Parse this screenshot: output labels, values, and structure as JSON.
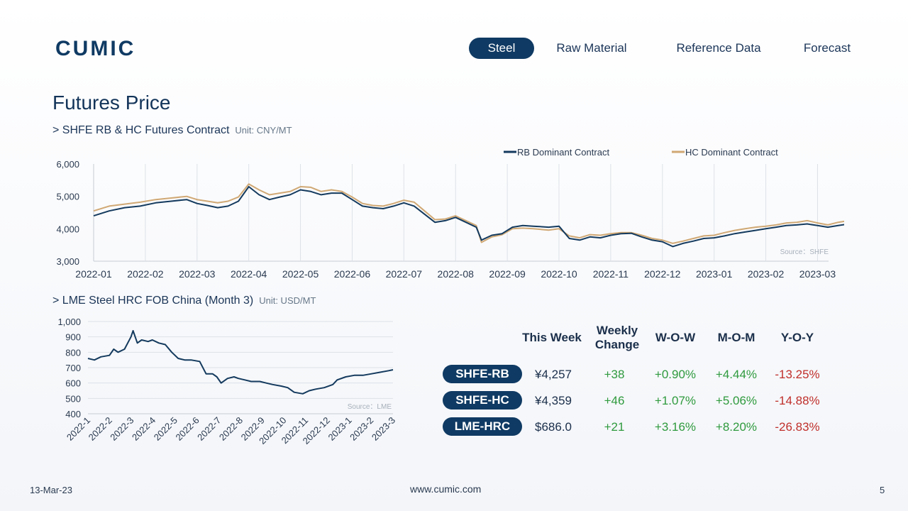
{
  "brand": {
    "logo_text": "CUMIC"
  },
  "nav": {
    "items": [
      "Steel",
      "Raw Material",
      "Reference Data",
      "Forecast"
    ],
    "active": 0
  },
  "page_title": "Futures Price",
  "section1": {
    "title": "> SHFE RB & HC Futures Contract",
    "unit": "Unit: CNY/MT"
  },
  "section2": {
    "title": "> LME Steel HRC FOB China (Month 3)",
    "unit": "Unit: USD/MT"
  },
  "colors": {
    "rb": "#143a5e",
    "hc": "#d0a874",
    "lme": "#143a5e",
    "positive": "#2f9a3e",
    "negative": "#c0302c",
    "pill": "#0f3a63"
  },
  "chart_data": [
    {
      "type": "line",
      "ylim": [
        3000,
        6000
      ],
      "yticks": [
        "3,000",
        "4,000",
        "5,000",
        "6,000"
      ],
      "categories": [
        "2022-01",
        "2022-02",
        "2022-03",
        "2022-04",
        "2022-05",
        "2022-06",
        "2022-07",
        "2022-08",
        "2022-09",
        "2022-10",
        "2022-11",
        "2022-12",
        "2023-01",
        "2023-02",
        "2023-03"
      ],
      "grid": "vertical",
      "legend_position": "top-right",
      "source": "Source：SHFE",
      "series": [
        {
          "name": "RB Dominant Contract",
          "color": "#143a5e",
          "values": [
            [
              0,
              4400
            ],
            [
              0.3,
              4550
            ],
            [
              0.6,
              4650
            ],
            [
              0.9,
              4700
            ],
            [
              1.2,
              4800
            ],
            [
              1.5,
              4850
            ],
            [
              1.8,
              4900
            ],
            [
              2.0,
              4780
            ],
            [
              2.2,
              4720
            ],
            [
              2.4,
              4650
            ],
            [
              2.6,
              4700
            ],
            [
              2.8,
              4850
            ],
            [
              3.0,
              5300
            ],
            [
              3.2,
              5050
            ],
            [
              3.4,
              4900
            ],
            [
              3.6,
              4980
            ],
            [
              3.8,
              5050
            ],
            [
              4.0,
              5200
            ],
            [
              4.2,
              5150
            ],
            [
              4.4,
              5050
            ],
            [
              4.6,
              5100
            ],
            [
              4.8,
              5100
            ],
            [
              5.0,
              4900
            ],
            [
              5.2,
              4700
            ],
            [
              5.4,
              4650
            ],
            [
              5.6,
              4620
            ],
            [
              5.8,
              4700
            ],
            [
              6.0,
              4800
            ],
            [
              6.2,
              4700
            ],
            [
              6.4,
              4450
            ],
            [
              6.6,
              4200
            ],
            [
              6.8,
              4250
            ],
            [
              7.0,
              4350
            ],
            [
              7.2,
              4200
            ],
            [
              7.4,
              4050
            ],
            [
              7.5,
              3650
            ],
            [
              7.7,
              3800
            ],
            [
              7.9,
              3850
            ],
            [
              8.1,
              4050
            ],
            [
              8.3,
              4100
            ],
            [
              8.5,
              4080
            ],
            [
              8.8,
              4050
            ],
            [
              9.0,
              4080
            ],
            [
              9.2,
              3700
            ],
            [
              9.4,
              3650
            ],
            [
              9.6,
              3750
            ],
            [
              9.8,
              3720
            ],
            [
              10.0,
              3800
            ],
            [
              10.2,
              3850
            ],
            [
              10.4,
              3860
            ],
            [
              10.6,
              3750
            ],
            [
              10.8,
              3650
            ],
            [
              11.0,
              3600
            ],
            [
              11.2,
              3450
            ],
            [
              11.4,
              3550
            ],
            [
              11.6,
              3620
            ],
            [
              11.8,
              3700
            ],
            [
              12.0,
              3720
            ],
            [
              12.2,
              3780
            ],
            [
              12.4,
              3850
            ],
            [
              12.6,
              3900
            ],
            [
              12.8,
              3950
            ],
            [
              13.0,
              4000
            ],
            [
              13.2,
              4050
            ],
            [
              13.4,
              4100
            ],
            [
              13.6,
              4120
            ],
            [
              13.8,
              4150
            ],
            [
              14.0,
              4100
            ],
            [
              14.2,
              4050
            ],
            [
              14.4,
              4100
            ],
            [
              14.6,
              4150
            ],
            [
              14.8,
              4200
            ],
            [
              15.0,
              4250
            ],
            [
              15.2,
              4200
            ],
            [
              15.4,
              4257
            ]
          ]
        },
        {
          "name": "HC Dominant Contract",
          "color": "#d0a874",
          "values": [
            [
              0,
              4550
            ],
            [
              0.3,
              4700
            ],
            [
              0.6,
              4760
            ],
            [
              0.9,
              4820
            ],
            [
              1.2,
              4900
            ],
            [
              1.5,
              4950
            ],
            [
              1.8,
              5000
            ],
            [
              2.0,
              4900
            ],
            [
              2.2,
              4850
            ],
            [
              2.4,
              4800
            ],
            [
              2.6,
              4850
            ],
            [
              2.8,
              4980
            ],
            [
              3.0,
              5380
            ],
            [
              3.2,
              5200
            ],
            [
              3.4,
              5050
            ],
            [
              3.6,
              5100
            ],
            [
              3.8,
              5150
            ],
            [
              4.0,
              5300
            ],
            [
              4.2,
              5280
            ],
            [
              4.4,
              5150
            ],
            [
              4.6,
              5200
            ],
            [
              4.8,
              5150
            ],
            [
              5.0,
              4980
            ],
            [
              5.2,
              4780
            ],
            [
              5.4,
              4720
            ],
            [
              5.6,
              4700
            ],
            [
              5.8,
              4780
            ],
            [
              6.0,
              4880
            ],
            [
              6.2,
              4820
            ],
            [
              6.4,
              4550
            ],
            [
              6.6,
              4280
            ],
            [
              6.8,
              4300
            ],
            [
              7.0,
              4400
            ],
            [
              7.2,
              4250
            ],
            [
              7.4,
              4100
            ],
            [
              7.5,
              3580
            ],
            [
              7.7,
              3750
            ],
            [
              7.9,
              3820
            ],
            [
              8.1,
              4000
            ],
            [
              8.3,
              4020
            ],
            [
              8.5,
              4000
            ],
            [
              8.8,
              3960
            ],
            [
              9.0,
              4000
            ],
            [
              9.2,
              3780
            ],
            [
              9.4,
              3720
            ],
            [
              9.6,
              3820
            ],
            [
              9.8,
              3800
            ],
            [
              10.0,
              3850
            ],
            [
              10.2,
              3880
            ],
            [
              10.4,
              3880
            ],
            [
              10.6,
              3800
            ],
            [
              10.8,
              3700
            ],
            [
              11.0,
              3650
            ],
            [
              11.2,
              3550
            ],
            [
              11.4,
              3620
            ],
            [
              11.6,
              3700
            ],
            [
              11.8,
              3780
            ],
            [
              12.0,
              3800
            ],
            [
              12.2,
              3880
            ],
            [
              12.4,
              3950
            ],
            [
              12.6,
              4000
            ],
            [
              12.8,
              4050
            ],
            [
              13.0,
              4080
            ],
            [
              13.2,
              4120
            ],
            [
              13.4,
              4180
            ],
            [
              13.6,
              4200
            ],
            [
              13.8,
              4250
            ],
            [
              14.0,
              4180
            ],
            [
              14.2,
              4120
            ],
            [
              14.4,
              4200
            ],
            [
              14.6,
              4250
            ],
            [
              14.8,
              4300
            ],
            [
              15.0,
              4300
            ],
            [
              15.2,
              4330
            ],
            [
              15.4,
              4359
            ]
          ]
        }
      ]
    },
    {
      "type": "line",
      "ylim": [
        400,
        1000
      ],
      "yticks": [
        "400",
        "500",
        "600",
        "700",
        "800",
        "900",
        "1,000"
      ],
      "categories": [
        "2022-1",
        "2022-2",
        "2022-3",
        "2022-4",
        "2022-5",
        "2022-6",
        "2022-7",
        "2022-8",
        "2022-9",
        "2022-10",
        "2022-11",
        "2022-12",
        "2023-1",
        "2023-2",
        "2023-3"
      ],
      "grid": "horizontal",
      "source": "Source：LME",
      "series": [
        {
          "name": "",
          "color": "#143a5e",
          "values": [
            [
              0,
              760
            ],
            [
              0.3,
              750
            ],
            [
              0.6,
              770
            ],
            [
              1.0,
              780
            ],
            [
              1.2,
              820
            ],
            [
              1.4,
              800
            ],
            [
              1.7,
              820
            ],
            [
              2.0,
              900
            ],
            [
              2.1,
              940
            ],
            [
              2.3,
              860
            ],
            [
              2.5,
              880
            ],
            [
              2.8,
              870
            ],
            [
              3.0,
              880
            ],
            [
              3.3,
              860
            ],
            [
              3.6,
              850
            ],
            [
              3.9,
              800
            ],
            [
              4.2,
              760
            ],
            [
              4.5,
              750
            ],
            [
              4.8,
              750
            ],
            [
              5.2,
              740
            ],
            [
              5.5,
              660
            ],
            [
              5.8,
              660
            ],
            [
              6.0,
              640
            ],
            [
              6.2,
              600
            ],
            [
              6.5,
              630
            ],
            [
              6.8,
              640
            ],
            [
              7.0,
              630
            ],
            [
              7.3,
              620
            ],
            [
              7.6,
              610
            ],
            [
              8.0,
              610
            ],
            [
              8.3,
              600
            ],
            [
              8.6,
              590
            ],
            [
              9.0,
              580
            ],
            [
              9.3,
              570
            ],
            [
              9.6,
              540
            ],
            [
              10.0,
              530
            ],
            [
              10.3,
              550
            ],
            [
              10.6,
              560
            ],
            [
              11.0,
              570
            ],
            [
              11.4,
              590
            ],
            [
              11.6,
              620
            ],
            [
              12.0,
              640
            ],
            [
              12.4,
              650
            ],
            [
              12.8,
              650
            ],
            [
              13.2,
              660
            ],
            [
              13.6,
              670
            ],
            [
              14.0,
              680
            ],
            [
              14.2,
              686
            ]
          ]
        }
      ]
    }
  ],
  "table": {
    "headers": [
      "This Week",
      "Weekly Change",
      "W-O-W",
      "M-O-M",
      "Y-O-Y"
    ],
    "rows": [
      {
        "label": "SHFE-RB",
        "this_week": "¥4,257",
        "weekly_change": "+38",
        "wow": "+0.90%",
        "mom": "+4.44%",
        "yoy": "-13.25%"
      },
      {
        "label": "SHFE-HC",
        "this_week": "¥4,359",
        "weekly_change": "+46",
        "wow": "+1.07%",
        "mom": "+5.06%",
        "yoy": "-14.88%"
      },
      {
        "label": "LME-HRC",
        "this_week": "$686.0",
        "weekly_change": "+21",
        "wow": "+3.16%",
        "mom": "+8.20%",
        "yoy": "-26.83%"
      }
    ]
  },
  "footer": {
    "date": "13-Mar-23",
    "url": "www.cumic.com",
    "page": "5"
  }
}
